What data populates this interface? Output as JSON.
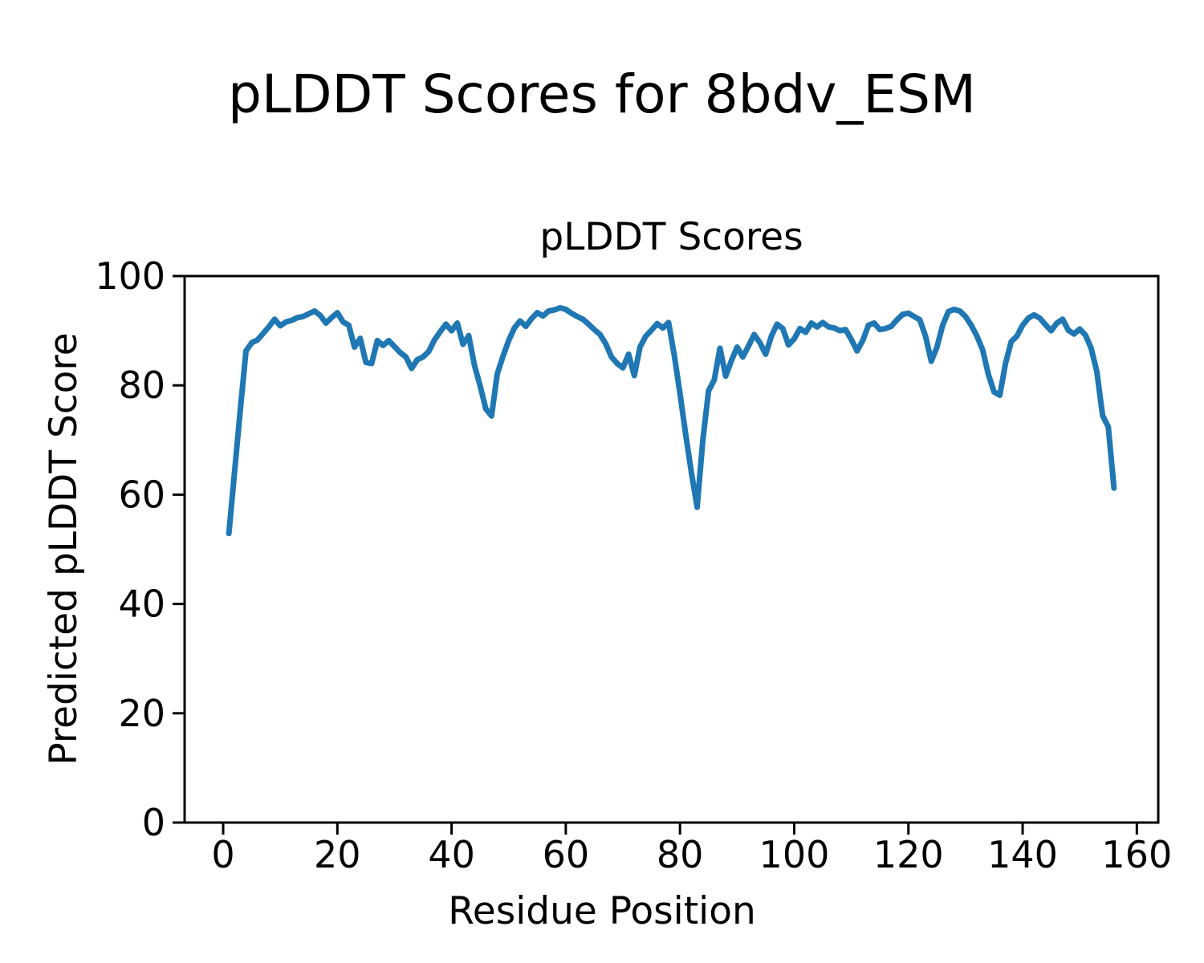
{
  "figure": {
    "suptitle": "pLDDT Scores for 8bdv_ESM",
    "background_color": "#ffffff"
  },
  "chart_data": {
    "type": "line",
    "title": "pLDDT Scores",
    "xlabel": "Residue Position",
    "ylabel": "Predicted pLDDT Score",
    "xlim": [
      -6.75,
      163.75
    ],
    "ylim": [
      0,
      100
    ],
    "xticks": [
      0,
      20,
      40,
      60,
      80,
      100,
      120,
      140,
      160
    ],
    "yticks": [
      0,
      20,
      40,
      60,
      80,
      100
    ],
    "grid": false,
    "legend_position": "none",
    "line_color": "#1f77b4",
    "axis_color": "#000000",
    "series": [
      {
        "name": "pLDDT",
        "x_start": 1,
        "x_step": 1,
        "values": [
          52.9,
          64.2,
          75.5,
          86.3,
          87.8,
          88.3,
          89.5,
          90.7,
          92.1,
          90.9,
          91.6,
          91.9,
          92.4,
          92.6,
          93.1,
          93.6,
          92.8,
          91.4,
          92.4,
          93.3,
          91.6,
          91.0,
          87.0,
          88.6,
          84.2,
          84.0,
          88.2,
          87.3,
          88.2,
          87.1,
          86.0,
          85.2,
          83.1,
          84.7,
          85.2,
          86.2,
          88.3,
          89.8,
          91.2,
          90.0,
          91.4,
          87.5,
          89.1,
          83.7,
          79.9,
          75.7,
          74.4,
          82.1,
          85.3,
          88.2,
          90.5,
          91.8,
          90.8,
          92.2,
          93.3,
          92.7,
          93.6,
          93.8,
          94.2,
          93.9,
          93.2,
          92.6,
          92.1,
          91.2,
          90.2,
          89.3,
          87.6,
          85.2,
          84.0,
          83.2,
          85.7,
          81.8,
          87.0,
          89.0,
          90.1,
          91.3,
          90.5,
          91.5,
          85.5,
          78.5,
          71.0,
          64.0,
          57.7,
          70.0,
          79.0,
          81.0,
          86.8,
          81.7,
          84.5,
          87.0,
          85.2,
          87.2,
          89.3,
          87.8,
          85.7,
          89.0,
          91.2,
          90.4,
          87.4,
          88.5,
          90.4,
          89.7,
          91.4,
          90.7,
          91.5,
          90.7,
          90.5,
          90.0,
          90.2,
          88.4,
          86.3,
          88.2,
          91.0,
          91.4,
          90.2,
          90.4,
          90.8,
          92.0,
          93.0,
          93.2,
          92.6,
          92.0,
          89.0,
          84.4,
          87.0,
          91.0,
          93.5,
          93.9,
          93.6,
          92.6,
          91.0,
          89.0,
          86.5,
          82.0,
          78.8,
          78.2,
          84.0,
          88.0,
          89.0,
          91.0,
          92.3,
          92.9,
          92.3,
          91.1,
          90.0,
          91.4,
          92.1,
          90.1,
          89.4,
          90.3,
          89.2,
          86.8,
          82.5,
          74.5,
          72.4,
          61.2
        ]
      }
    ]
  }
}
